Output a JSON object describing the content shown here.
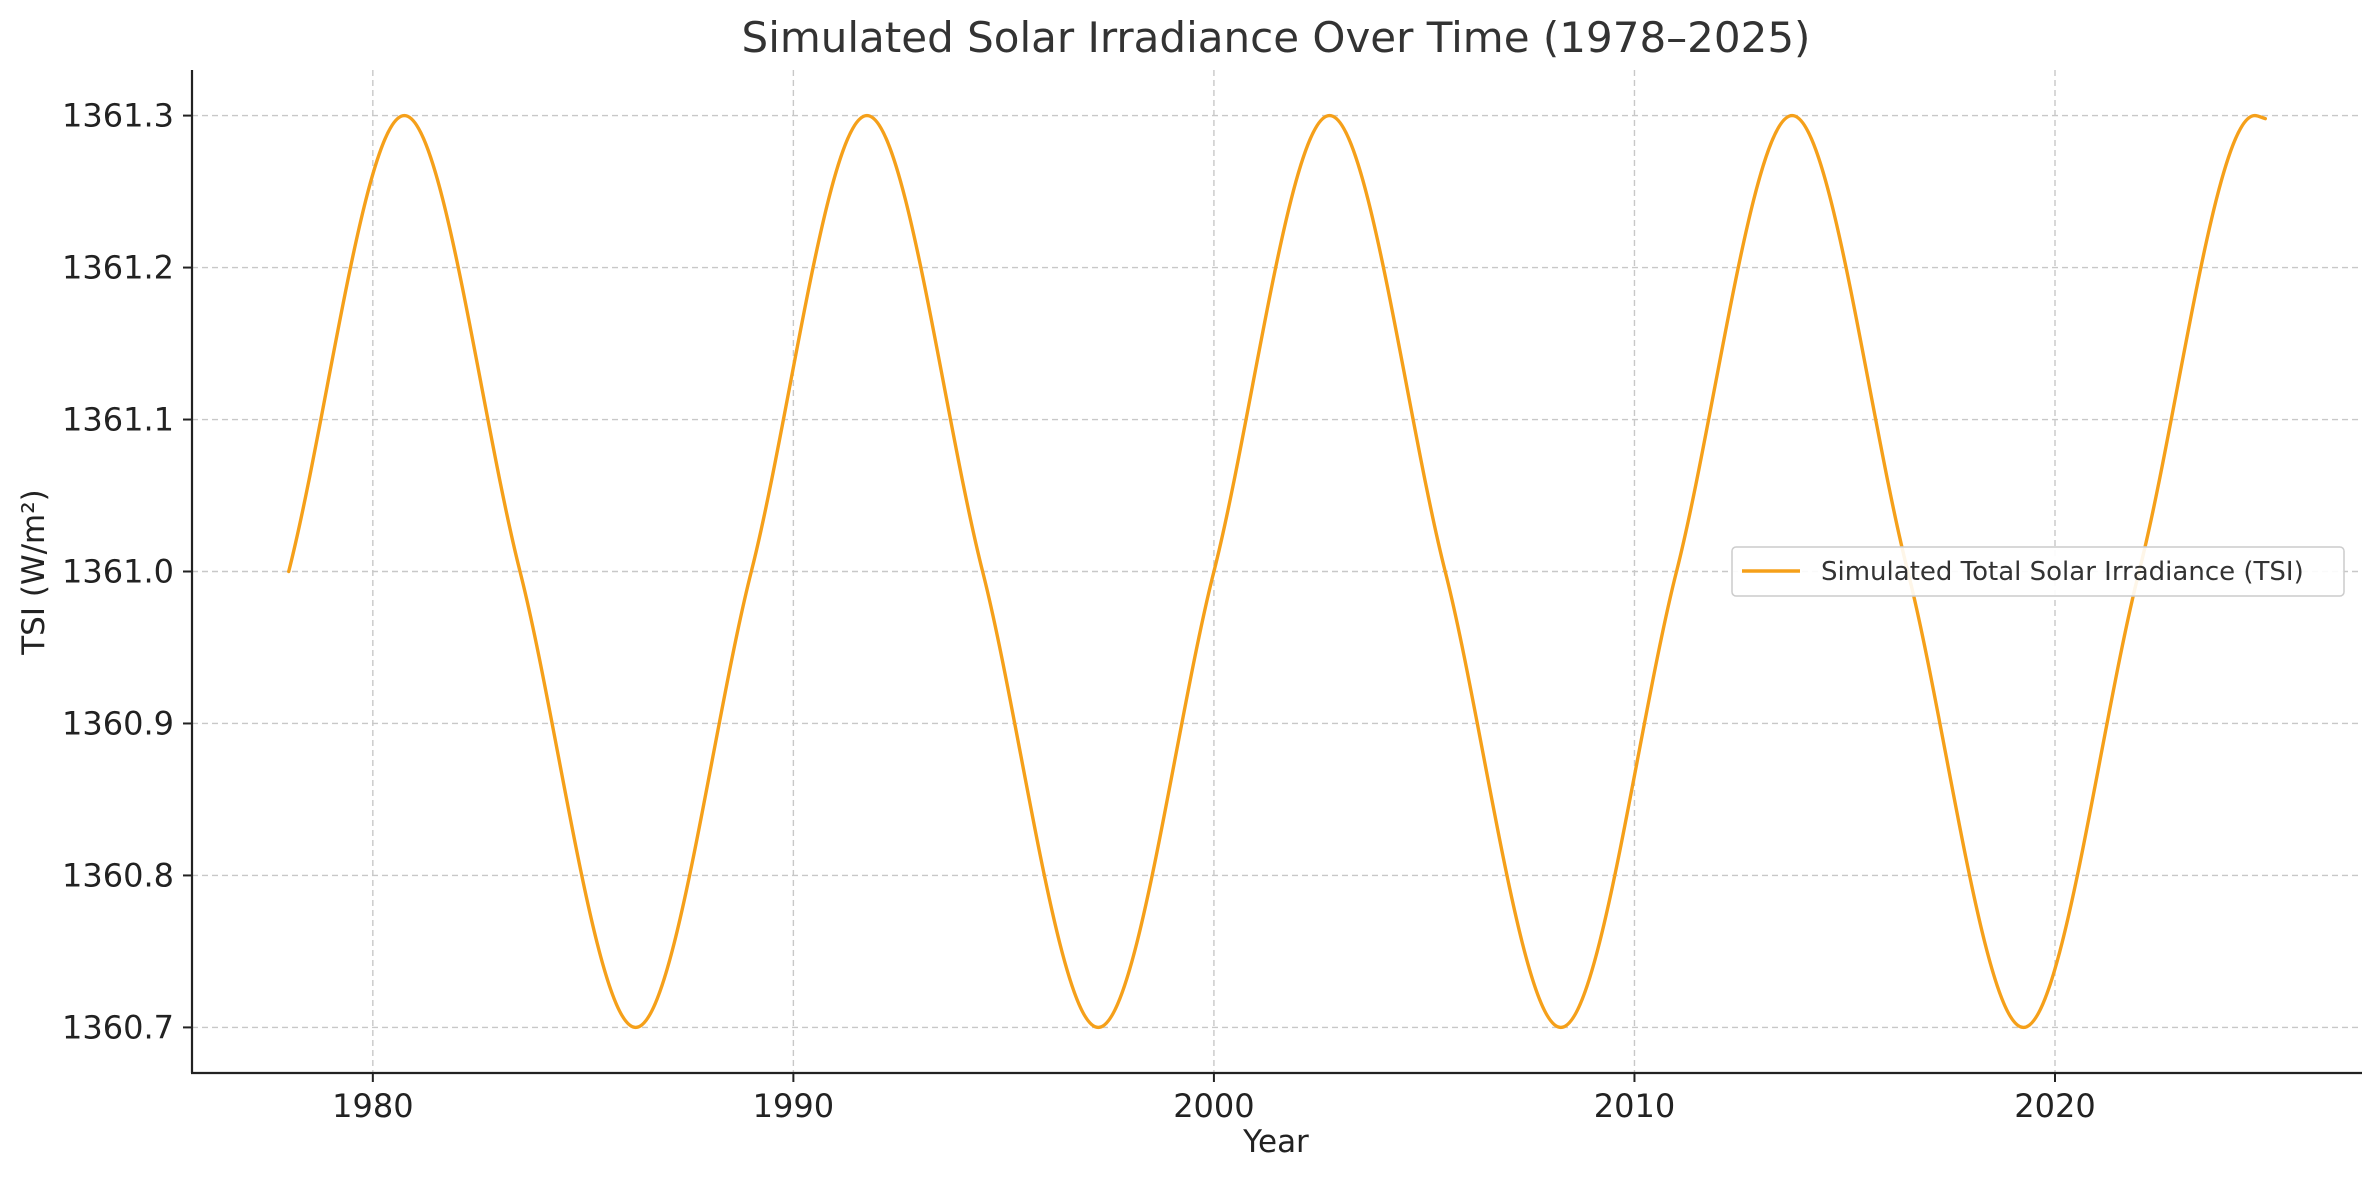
{
  "chart_data": {
    "type": "line",
    "title": "Simulated Solar Irradiance Over Time (1978–2025)",
    "xlabel": "Year",
    "ylabel": "TSI (W/m²)",
    "xlim": [
      1975.7,
      2027.3
    ],
    "ylim": [
      1360.67,
      1361.33
    ],
    "xticks": [
      1980,
      1990,
      2000,
      2010,
      2020
    ],
    "xtick_labels": [
      "1980",
      "1990",
      "2000",
      "2010",
      "2020"
    ],
    "yticks": [
      1360.7,
      1360.8,
      1360.9,
      1361.0,
      1361.1,
      1361.2,
      1361.3
    ],
    "ytick_labels": [
      "1360.7",
      "1360.8",
      "1360.9",
      "1361.0",
      "1361.1",
      "1361.2",
      "1361.3"
    ],
    "grid": true,
    "legend_position": "center-right",
    "series": [
      {
        "name": "Simulated Total Solar Irradiance (TSI)",
        "color": "#f5a01a",
        "x": [
          1978.0,
          1980.75,
          1983.5,
          1986.25,
          1989.0,
          1991.75,
          1994.5,
          1997.25,
          2000.0,
          2002.75,
          2005.5,
          2008.25,
          2011.0,
          2013.75,
          2016.5,
          2019.25,
          2022.0,
          2024.75,
          2025.0
        ],
        "y": [
          1361.0,
          1361.3,
          1361.0,
          1360.7,
          1361.0,
          1361.3,
          1361.0,
          1360.7,
          1361.0,
          1361.3,
          1361.0,
          1360.7,
          1361.0,
          1361.3,
          1361.0,
          1360.7,
          1361.0,
          1361.3,
          1361.298
        ]
      }
    ]
  }
}
